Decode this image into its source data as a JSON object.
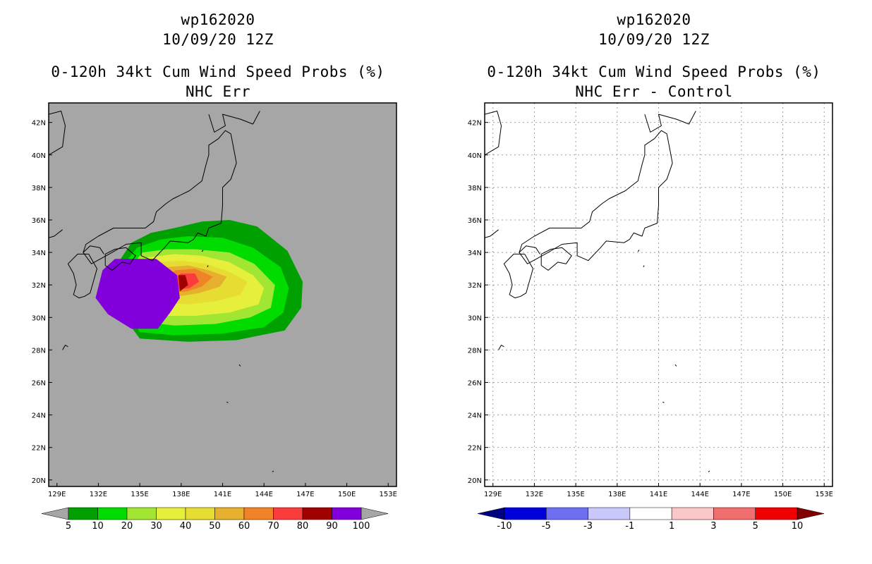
{
  "chart_data": [
    {
      "type": "heatmap",
      "title_lines": [
        "wp162020",
        "10/09/20 12Z",
        "0-120h 34kt Cum Wind Speed Probs (%)",
        "NHC Err"
      ],
      "x_ticks": [
        "129E",
        "132E",
        "135E",
        "138E",
        "141E",
        "144E",
        "147E",
        "150E",
        "153E"
      ],
      "y_ticks": [
        "42N",
        "40N",
        "38N",
        "36N",
        "34N",
        "32N",
        "30N",
        "28N",
        "26N",
        "24N",
        "22N",
        "20N"
      ],
      "xlim": [
        128.4,
        153.6
      ],
      "ylim": [
        19.6,
        43.2
      ],
      "grid": false,
      "background": "#a6a6a6",
      "colorbar": {
        "labels": [
          "5",
          "10",
          "20",
          "30",
          "40",
          "50",
          "60",
          "70",
          "80",
          "90",
          "100"
        ],
        "colors": [
          "#00a000",
          "#00dc00",
          "#a0e632",
          "#e6f03c",
          "#e6dc32",
          "#e6af2d",
          "#f08228",
          "#fa3c3c",
          "#a00000",
          "#8200dc"
        ],
        "end_colors": [
          "#a6a6a6",
          "#a6a6a6"
        ]
      },
      "contours": [
        {
          "level": 5,
          "color": "#00a000",
          "points": [
            [
              133.7,
              30.2
            ],
            [
              133.3,
              33.2
            ],
            [
              134.4,
              34.6
            ],
            [
              135.8,
              35.2
            ],
            [
              137.5,
              35.5
            ],
            [
              139.5,
              35.9
            ],
            [
              141.5,
              36.0
            ],
            [
              143.5,
              35.6
            ],
            [
              145.7,
              34.1
            ],
            [
              146.8,
              32.2
            ],
            [
              146.7,
              30.6
            ],
            [
              145.5,
              29.2
            ],
            [
              142.0,
              28.6
            ],
            [
              138.5,
              28.5
            ],
            [
              135.0,
              28.7
            ]
          ]
        },
        {
          "level": 10,
          "color": "#00dc00",
          "points": [
            [
              134.2,
              30.4
            ],
            [
              133.6,
              33.0
            ],
            [
              134.8,
              34.3
            ],
            [
              136.5,
              34.8
            ],
            [
              138.5,
              35.0
            ],
            [
              141.0,
              34.9
            ],
            [
              143.2,
              34.3
            ],
            [
              145.2,
              33.1
            ],
            [
              145.8,
              31.8
            ],
            [
              145.4,
              30.3
            ],
            [
              144.0,
              29.4
            ],
            [
              141.0,
              29.0
            ],
            [
              137.5,
              28.9
            ],
            [
              135.0,
              29.1
            ]
          ]
        },
        {
          "level": 20,
          "color": "#a0e632",
          "points": [
            [
              134.6,
              30.6
            ],
            [
              134.0,
              32.8
            ],
            [
              135.2,
              34.0
            ],
            [
              137.0,
              34.2
            ],
            [
              139.0,
              34.2
            ],
            [
              141.5,
              34.0
            ],
            [
              143.3,
              33.3
            ],
            [
              144.8,
              32.0
            ],
            [
              144.5,
              30.6
            ],
            [
              143.0,
              30.0
            ],
            [
              140.5,
              29.6
            ],
            [
              137.5,
              29.5
            ],
            [
              135.5,
              29.7
            ]
          ]
        },
        {
          "level": 30,
          "color": "#e6f03c",
          "points": [
            [
              135.0,
              30.8
            ],
            [
              134.5,
              32.6
            ],
            [
              135.6,
              33.7
            ],
            [
              137.5,
              33.9
            ],
            [
              139.5,
              33.8
            ],
            [
              141.5,
              33.4
            ],
            [
              143.2,
              32.6
            ],
            [
              144.0,
              31.8
            ],
            [
              143.6,
              30.8
            ],
            [
              141.5,
              30.3
            ],
            [
              139.0,
              30.1
            ],
            [
              136.5,
              30.1
            ]
          ]
        },
        {
          "level": 40,
          "color": "#e6dc32",
          "points": [
            [
              135.5,
              31.0
            ],
            [
              135.2,
              32.5
            ],
            [
              136.2,
              33.4
            ],
            [
              138.0,
              33.5
            ],
            [
              139.8,
              33.3
            ],
            [
              141.5,
              32.8
            ],
            [
              142.8,
              32.2
            ],
            [
              142.3,
              31.4
            ],
            [
              140.5,
              31.0
            ],
            [
              138.5,
              30.8
            ]
          ]
        },
        {
          "level": 50,
          "color": "#e6af2d",
          "points": [
            [
              136.2,
              31.3
            ],
            [
              136.0,
              32.4
            ],
            [
              137.0,
              33.1
            ],
            [
              138.5,
              33.2
            ],
            [
              140.0,
              32.9
            ],
            [
              141.3,
              32.5
            ],
            [
              140.8,
              31.9
            ],
            [
              139.3,
              31.5
            ],
            [
              137.8,
              31.3
            ]
          ]
        },
        {
          "level": 60,
          "color": "#f08228",
          "points": [
            [
              136.8,
              31.5
            ],
            [
              136.6,
              32.4
            ],
            [
              137.6,
              32.9
            ],
            [
              139.0,
              33.0
            ],
            [
              140.3,
              32.5
            ],
            [
              139.5,
              31.9
            ],
            [
              138.4,
              31.6
            ]
          ]
        },
        {
          "level": 70,
          "color": "#fa3c3c",
          "points": [
            [
              137.3,
              31.7
            ],
            [
              137.2,
              32.3
            ],
            [
              138.0,
              32.7
            ],
            [
              139.0,
              32.7
            ],
            [
              139.3,
              32.2
            ],
            [
              138.6,
              31.8
            ]
          ]
        },
        {
          "level": 80,
          "color": "#a00000",
          "points": [
            [
              137.9,
              31.6
            ],
            [
              137.8,
              32.6
            ],
            [
              138.3,
              32.6
            ],
            [
              138.5,
              32.0
            ]
          ]
        },
        {
          "level": 90,
          "color": "#8200dc",
          "points": [
            [
              131.8,
              31.2
            ],
            [
              132.3,
              32.9
            ],
            [
              133.2,
              33.6
            ],
            [
              136.2,
              33.6
            ],
            [
              137.7,
              32.6
            ],
            [
              137.9,
              31.2
            ],
            [
              137.2,
              30.3
            ],
            [
              136.3,
              29.3
            ],
            [
              134.4,
              29.3
            ],
            [
              132.7,
              30.2
            ]
          ]
        }
      ]
    },
    {
      "type": "heatmap",
      "title_lines": [
        "wp162020",
        "10/09/20 12Z",
        "0-120h 34kt Cum Wind Speed Probs (%)",
        "NHC Err - Control"
      ],
      "x_ticks": [
        "129E",
        "132E",
        "135E",
        "138E",
        "141E",
        "144E",
        "147E",
        "150E",
        "153E"
      ],
      "y_ticks": [
        "42N",
        "40N",
        "38N",
        "36N",
        "34N",
        "32N",
        "30N",
        "28N",
        "26N",
        "24N",
        "22N",
        "20N"
      ],
      "xlim": [
        128.4,
        153.6
      ],
      "ylim": [
        19.6,
        43.2
      ],
      "grid": true,
      "background": "#ffffff",
      "colorbar": {
        "labels": [
          "-10",
          "-5",
          "-3",
          "-1",
          "1",
          "3",
          "5",
          "10"
        ],
        "colors": [
          "#0000dc",
          "#6e6ef0",
          "#c8c8fa",
          "#ffffff",
          "#fac8c8",
          "#f06e6e",
          "#f00000"
        ],
        "end_colors": [
          "#000080",
          "#800000"
        ]
      }
    }
  ],
  "map": {
    "coast_color": "#000000",
    "japan_outline": [
      [
        132.4,
        33.9
      ],
      [
        132.1,
        34.3
      ],
      [
        131.4,
        34.4
      ],
      [
        130.9,
        34.0
      ],
      [
        131.5,
        33.3
      ],
      [
        133.0,
        34.0
      ],
      [
        134.0,
        34.5
      ],
      [
        135.1,
        34.6
      ],
      [
        135.1,
        33.8
      ],
      [
        135.9,
        33.5
      ],
      [
        136.8,
        34.3
      ],
      [
        137.2,
        34.7
      ],
      [
        138.5,
        34.6
      ],
      [
        138.9,
        34.8
      ],
      [
        139.2,
        35.2
      ],
      [
        139.8,
        35.0
      ],
      [
        140.0,
        35.5
      ],
      [
        140.9,
        35.8
      ],
      [
        141.0,
        36.9
      ],
      [
        141.0,
        38.0
      ],
      [
        141.6,
        38.5
      ],
      [
        142.0,
        39.5
      ],
      [
        141.8,
        40.4
      ],
      [
        141.6,
        41.3
      ],
      [
        141.2,
        41.5
      ],
      [
        140.7,
        41.0
      ],
      [
        140.0,
        40.6
      ],
      [
        140.0,
        40.0
      ],
      [
        139.8,
        39.4
      ],
      [
        139.5,
        38.4
      ],
      [
        138.6,
        37.8
      ],
      [
        137.4,
        37.3
      ],
      [
        136.9,
        37.0
      ],
      [
        136.2,
        36.5
      ],
      [
        136.0,
        35.9
      ],
      [
        135.4,
        35.5
      ],
      [
        134.3,
        35.5
      ],
      [
        133.1,
        35.5
      ],
      [
        132.0,
        35.0
      ],
      [
        131.1,
        34.5
      ],
      [
        130.9,
        34.0
      ]
    ],
    "hokkaido": [
      [
        140.0,
        42.5
      ],
      [
        140.4,
        41.4
      ],
      [
        141.2,
        41.8
      ],
      [
        141.0,
        42.5
      ],
      [
        142.3,
        42.2
      ],
      [
        143.2,
        41.9
      ],
      [
        143.7,
        42.7
      ]
    ],
    "kyushu": [
      [
        131.3,
        33.9
      ],
      [
        131.9,
        33.0
      ],
      [
        131.4,
        31.5
      ],
      [
        131.0,
        31.3
      ],
      [
        130.6,
        31.2
      ],
      [
        130.2,
        31.4
      ],
      [
        130.4,
        32.0
      ],
      [
        130.2,
        32.7
      ],
      [
        129.8,
        33.3
      ],
      [
        130.5,
        33.9
      ],
      [
        131.3,
        33.9
      ]
    ],
    "shikoku": [
      [
        132.5,
        33.2
      ],
      [
        133.0,
        32.9
      ],
      [
        133.7,
        33.4
      ],
      [
        134.3,
        33.3
      ],
      [
        134.7,
        33.8
      ],
      [
        134.0,
        34.3
      ],
      [
        133.2,
        34.2
      ],
      [
        132.5,
        33.9
      ],
      [
        132.5,
        33.2
      ]
    ],
    "korea": [
      [
        129.4,
        35.4
      ],
      [
        128.8,
        35.0
      ],
      [
        128.4,
        34.9
      ]
    ],
    "china_asia": [
      [
        128.4,
        42.5
      ],
      [
        129.3,
        42.7
      ],
      [
        129.6,
        41.8
      ],
      [
        129.4,
        40.5
      ],
      [
        128.4,
        40.0
      ]
    ],
    "islands": [
      [
        [
          129.8,
          28.2
        ],
        [
          129.6,
          28.3
        ],
        [
          129.4,
          28.0
        ]
      ],
      [
        [
          139.5,
          34.05
        ],
        [
          139.6,
          34.15
        ]
      ],
      [
        [
          139.9,
          33.1
        ],
        [
          139.95,
          33.2
        ]
      ],
      [
        [
          142.2,
          27.1
        ],
        [
          142.3,
          27.0
        ]
      ],
      [
        [
          141.3,
          24.8
        ],
        [
          141.4,
          24.75
        ]
      ],
      [
        [
          144.6,
          20.5
        ],
        [
          144.7,
          20.55
        ]
      ]
    ]
  }
}
